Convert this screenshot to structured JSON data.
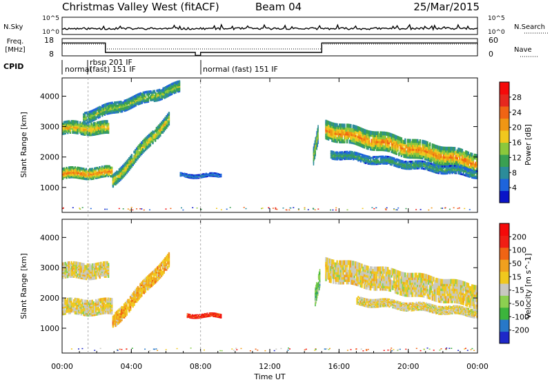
{
  "header": {
    "station": "Christmas Valley West (fitACF)",
    "beam": "Beam 04",
    "date": "25/Mar/2015"
  },
  "strips": {
    "nsky_label": "N.Sky",
    "nsky_ticks": [
      "10^5",
      "10^0"
    ],
    "nsearch_label": "N.Search",
    "freq_label_1": "Freq.",
    "freq_label_2": "[MHz]",
    "freq_ticks": [
      "18",
      "8"
    ],
    "nave_label": "Nave",
    "nave_ticks": [
      "60",
      "0"
    ],
    "cpid_label": "CPID",
    "cpid_segments": [
      {
        "label": "normal",
        "start_hour": 0
      },
      {
        "label": "rbsp 201 IF",
        "start_hour": 1.5
      },
      {
        "label": "(fast) 151 IF",
        "start_hour": 1.5
      },
      {
        "label": "normal (fast) 151 IF",
        "start_hour": 8.0
      }
    ],
    "freq_mhz_series": [
      {
        "start_hour": 0.0,
        "end_hour": 2.5,
        "value": 15.5
      },
      {
        "start_hour": 2.5,
        "end_hour": 7.7,
        "value": 10.0
      },
      {
        "start_hour": 7.7,
        "end_hour": 8.0,
        "value": 8.3
      },
      {
        "start_hour": 8.0,
        "end_hour": 15.0,
        "value": 10.0
      },
      {
        "start_hour": 15.0,
        "end_hour": 24.0,
        "value": 15.5
      }
    ]
  },
  "chart_data": [
    {
      "type": "heatmap",
      "title": "",
      "xlabel": "Time UT",
      "ylabel": "Slant Range [km]",
      "x_ticks": [
        "00:00",
        "04:00",
        "08:00",
        "12:00",
        "16:00",
        "20:00",
        "00:00"
      ],
      "xlim_hours": [
        0,
        24
      ],
      "ylim": [
        180,
        4600
      ],
      "y_ticks": [
        1000,
        2000,
        3000,
        4000
      ],
      "colorbar": {
        "label": "Power [dB]",
        "ticks": [
          "4",
          "8",
          "12",
          "16",
          "20",
          "24",
          "28"
        ],
        "range": [
          0,
          32
        ],
        "colors": [
          "#0a14c8",
          "#1e64dc",
          "#2c8c9a",
          "#3aa052",
          "#8cc83c",
          "#f0c81e",
          "#f09614",
          "#f06414",
          "#e6281e",
          "#f50a0a"
        ]
      },
      "echo_bands": [
        {
          "name": "",
          "t_start": 0.0,
          "t_end": 2.9,
          "r_start": 1450,
          "r_end": 1500,
          "width": 160,
          "level": 0.72
        },
        {
          "name": "",
          "t_start": 0.0,
          "t_end": 2.7,
          "r_start": 2950,
          "r_end": 2950,
          "width": 180,
          "level": 0.62
        },
        {
          "name": "",
          "t_start": 2.9,
          "t_end": 6.2,
          "r_start": 1200,
          "r_end": 3300,
          "width": 180,
          "level": 0.55
        },
        {
          "name": "",
          "t_start": 1.2,
          "t_end": 6.8,
          "r_start": 3300,
          "r_end": 4300,
          "width": 160,
          "level": 0.45
        },
        {
          "name": "",
          "t_start": 6.8,
          "t_end": 9.2,
          "r_start": 1400,
          "r_end": 1380,
          "width": 60,
          "level": 0.22
        },
        {
          "name": "",
          "t_start": 14.5,
          "t_end": 14.8,
          "r_start": 2000,
          "r_end": 2800,
          "width": 250,
          "level": 0.5
        },
        {
          "name": "",
          "t_start": 15.2,
          "t_end": 24.0,
          "r_start": 2900,
          "r_end": 1800,
          "width": 260,
          "level": 0.7
        },
        {
          "name": "",
          "t_start": 15.5,
          "t_end": 24.0,
          "r_start": 2100,
          "r_end": 1450,
          "width": 120,
          "level": 0.35
        }
      ]
    },
    {
      "type": "heatmap",
      "title": "",
      "xlabel": "Time UT",
      "ylabel": "Slant Range [km]",
      "x_ticks": [
        "00:00",
        "04:00",
        "08:00",
        "12:00",
        "16:00",
        "20:00",
        "00:00"
      ],
      "xlim_hours": [
        0,
        24
      ],
      "ylim": [
        180,
        4600
      ],
      "y_ticks": [
        1000,
        2000,
        3000,
        4000
      ],
      "colorbar": {
        "label": "Velocity [m s^-1]",
        "ticks": [
          "200",
          "100",
          "50",
          "15",
          "-15",
          "-50",
          "-100",
          "-200"
        ],
        "range": [
          -250,
          250
        ],
        "colors": [
          "#1e28c8",
          "#2878c8",
          "#3cb43c",
          "#8cd050",
          "#c8c8c0",
          "#f0c81e",
          "#f0a01e",
          "#f06414",
          "#f01e14",
          "#f50a0a"
        ]
      },
      "echo_bands": [
        {
          "name": "",
          "t_start": 0.0,
          "t_end": 2.9,
          "r_start": 1700,
          "r_end": 1700,
          "width": 220,
          "level": 0.5
        },
        {
          "name": "",
          "t_start": 0.0,
          "t_end": 2.7,
          "r_start": 2900,
          "r_end": 2900,
          "width": 220,
          "level": 0.5
        },
        {
          "name": "",
          "t_start": 2.9,
          "t_end": 6.2,
          "r_start": 1200,
          "r_end": 3300,
          "width": 200,
          "level": 0.6
        },
        {
          "name": "",
          "t_start": 7.2,
          "t_end": 9.2,
          "r_start": 1430,
          "r_end": 1400,
          "width": 60,
          "level": 0.85
        },
        {
          "name": "",
          "t_start": 14.6,
          "t_end": 14.9,
          "r_start": 2000,
          "r_end": 2700,
          "width": 250,
          "level": 0.3
        },
        {
          "name": "",
          "t_start": 15.2,
          "t_end": 24.0,
          "r_start": 2950,
          "r_end": 2050,
          "width": 320,
          "level": 0.5
        },
        {
          "name": "",
          "t_start": 17.0,
          "t_end": 24.0,
          "r_start": 1900,
          "r_end": 1500,
          "width": 120,
          "level": 0.5
        }
      ]
    }
  ]
}
